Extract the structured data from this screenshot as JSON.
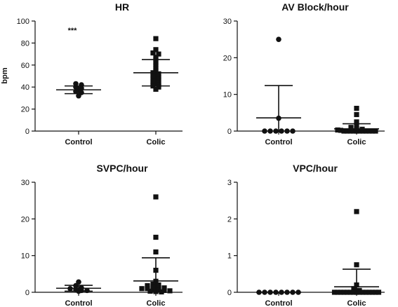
{
  "chart_data": [
    {
      "type": "scatter",
      "title": "HR",
      "ylabel": "bpm",
      "ylim": [
        0,
        100
      ],
      "yticks": [
        0,
        20,
        40,
        60,
        80,
        100
      ],
      "categories": [
        "Control",
        "Colic"
      ],
      "annotation": "***",
      "groups": [
        {
          "category": "Control",
          "marker": "circle",
          "values": [
            43,
            42,
            40,
            39,
            37,
            36,
            35,
            32
          ],
          "mean": 37.5,
          "sd_low": 34,
          "sd_high": 41
        },
        {
          "category": "Colic",
          "marker": "square",
          "values": [
            84,
            74,
            71,
            70,
            67,
            65,
            62,
            60,
            57,
            55,
            53,
            52,
            50,
            49,
            48,
            47,
            45,
            44,
            43,
            42,
            41,
            40,
            38
          ],
          "mean": 53,
          "sd_low": 41,
          "sd_high": 65
        }
      ]
    },
    {
      "type": "scatter",
      "title": "AV Block/hour",
      "ylabel": "",
      "ylim": [
        0,
        30
      ],
      "yticks": [
        0,
        10,
        20,
        30
      ],
      "categories": [
        "Control",
        "Colic"
      ],
      "groups": [
        {
          "category": "Control",
          "marker": "circle",
          "values": [
            25,
            3.5,
            0,
            0,
            0,
            0,
            0,
            0
          ],
          "mean": 3.6,
          "sd_low": 0,
          "sd_high": 12.4
        },
        {
          "category": "Colic",
          "marker": "square",
          "values": [
            6.2,
            4.5,
            2.5,
            1.5,
            1,
            0.5,
            0.5,
            0.3,
            0.2,
            0,
            0,
            0,
            0,
            0,
            0,
            0,
            0,
            0,
            0,
            0
          ],
          "mean": 0.6,
          "sd_low": 0,
          "sd_high": 2
        }
      ]
    },
    {
      "type": "scatter",
      "title": "SVPC/hour",
      "ylabel": "",
      "ylim": [
        0,
        30
      ],
      "yticks": [
        0,
        10,
        20,
        30
      ],
      "categories": [
        "Control",
        "Colic"
      ],
      "groups": [
        {
          "category": "Control",
          "marker": "circle",
          "values": [
            2.8,
            1.8,
            1.2,
            1,
            0.8,
            0.5,
            0.5,
            0.3
          ],
          "mean": 1.1,
          "sd_low": 0.3,
          "sd_high": 1.9
        },
        {
          "category": "Colic",
          "marker": "square",
          "values": [
            26,
            15,
            11,
            6,
            3,
            2.2,
            2,
            1.8,
            1.5,
            1.3,
            1.2,
            1,
            1,
            0.8,
            0.6,
            0.5,
            0.4,
            0.3,
            0.2,
            0.1
          ],
          "mean": 3.1,
          "sd_low": 0,
          "sd_high": 9.4
        }
      ]
    },
    {
      "type": "scatter",
      "title": "VPC/hour",
      "ylabel": "",
      "ylim": [
        0,
        3
      ],
      "yticks": [
        0,
        1,
        2,
        3
      ],
      "categories": [
        "Control",
        "Colic"
      ],
      "groups": [
        {
          "category": "Control",
          "marker": "circle",
          "values": [
            0,
            0,
            0,
            0,
            0,
            0,
            0,
            0
          ],
          "mean": 0,
          "sd_low": 0,
          "sd_high": 0
        },
        {
          "category": "Colic",
          "marker": "square",
          "values": [
            2.2,
            0.75,
            0.2,
            0.1,
            0.05,
            0,
            0,
            0,
            0,
            0,
            0,
            0,
            0,
            0,
            0,
            0,
            0,
            0,
            0,
            0
          ],
          "mean": 0.15,
          "sd_low": 0,
          "sd_high": 0.63
        }
      ]
    }
  ]
}
